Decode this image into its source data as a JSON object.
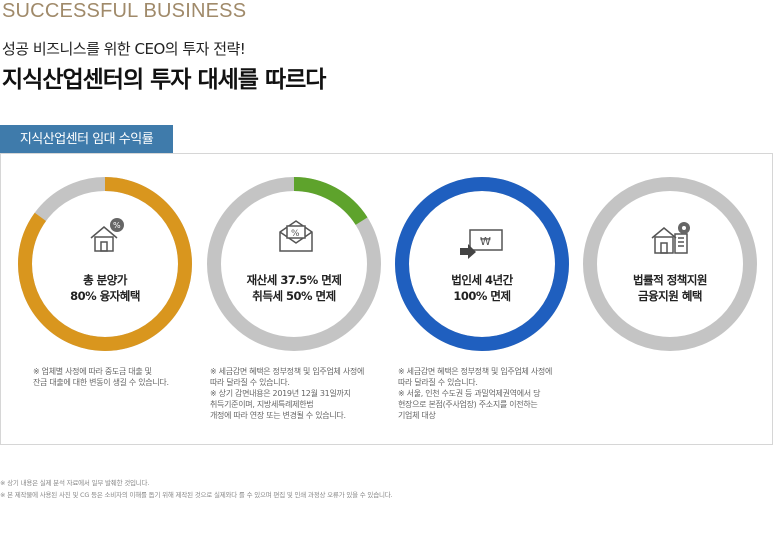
{
  "header": {
    "eyebrow": "SUCCESSFUL BUSINESS",
    "subtitle": "성공 비즈니스를 위한 CEO의 투자 전략!",
    "headline": "지식산업센터의 투자 대세를 따르다"
  },
  "section_tab": "지식산업센터 임대 수익률",
  "cards": [
    {
      "line1": "총 분양가",
      "line2": "80% 융자혜택",
      "ring_color": "#d9961e",
      "fill_fraction": 0.85,
      "icon": "house-percent-icon",
      "note": [
        "※ 업체별 사정에 따라 중도금 대출 및",
        "잔금 대출에 대한 변동이 생길 수 있습니다."
      ]
    },
    {
      "line1": "재산세 37.5% 면제",
      "line2": "취득세 50% 면제",
      "ring_color": "#5ea32c",
      "fill_fraction": 0.16,
      "icon": "envelope-percent-icon",
      "note": [
        "※ 세금감면 혜택은 정부정책 및 입주업체 사정에",
        "따라 달라질 수 있습니다.",
        "※ 상기 감면내용은 2019년 12월 31일까지",
        "취득기준이며, 지방세특례제한법",
        "개정에 따라 연장 또는 변경될 수 있습니다."
      ]
    },
    {
      "line1": "법인세 4년간",
      "line2": "100% 면제",
      "ring_color": "#1f5fbf",
      "fill_fraction": 1.0,
      "icon": "won-card-icon",
      "note": [
        "※ 세금감면 혜택은 정부정책 및 입주업체 사정에",
        "따라 달라질 수 있습니다.",
        "※ 서울, 인천 수도권 등 과밀억제권역에서 당",
        "현장으로 본점(주사업장) 주소지를 이전하는",
        "기업체 대상"
      ]
    },
    {
      "line1": "법률적 정책지원",
      "line2": "금융지원 혜택",
      "ring_color": "#c4c4c4",
      "fill_fraction": 0.0,
      "icon": "building-gear-icon",
      "note": []
    }
  ],
  "colors": {
    "track": "#c4c4c4",
    "tab_bg": "#3f7bab",
    "eyebrow": "#a08a6a"
  },
  "footer": [
    "※ 상기 내용은 실제 분석 자료에서 일부 발췌한 것입니다.",
    "※ 본 제작물에 사용된 사진 및 CG 등은 소비자의 이해를 돕기 위해 제작된 것으로 실제와다 를 수 있으며 편집 및 인쇄 과정상 오류가 있을 수 있습니다."
  ]
}
